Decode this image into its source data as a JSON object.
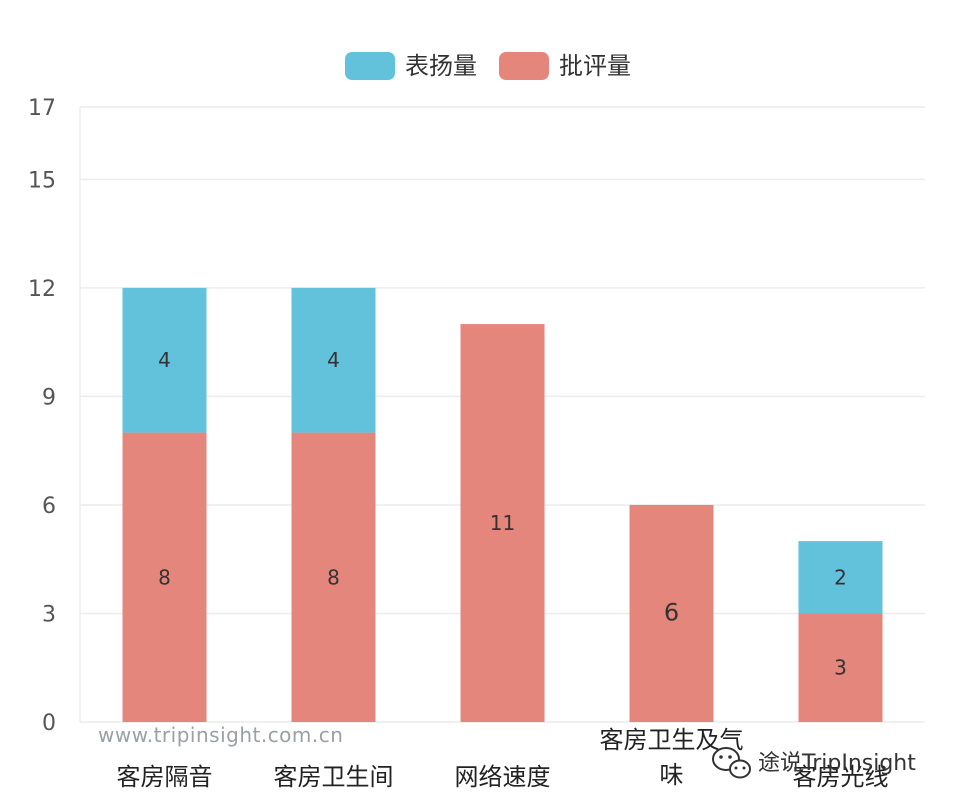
{
  "chart_data": {
    "type": "bar",
    "stacked": true,
    "categories": [
      "客房隔音",
      "客房卫生间",
      "网络速度",
      "客房卫生及气味",
      "客房光线"
    ],
    "category_lines": [
      [
        "客房隔音"
      ],
      [
        "客房卫生间"
      ],
      [
        "网络速度"
      ],
      [
        "客房卫生及气",
        "味"
      ],
      [
        "客房光线"
      ]
    ],
    "series": [
      {
        "name": "批评量",
        "color": "#e5867c",
        "values": [
          8,
          8,
          11,
          6,
          3
        ],
        "labels": [
          "8",
          "8",
          "11",
          "6",
          "3"
        ]
      },
      {
        "name": "表扬量",
        "color": "#62c2db",
        "values": [
          4,
          4,
          0,
          0,
          2
        ],
        "labels": [
          "4",
          "4",
          "",
          "",
          "2"
        ]
      }
    ],
    "legend": {
      "placement": "top-center",
      "order": [
        "表扬量",
        "批评量"
      ]
    },
    "ylim": [
      0,
      17
    ],
    "yticks": [
      0,
      3,
      6,
      9,
      12,
      15,
      17
    ],
    "grid": true,
    "xlabel": "",
    "ylabel": ""
  },
  "watermark": "www.tripinsight.com.cn",
  "wechat": {
    "icon": "wechat-icon",
    "text": "途说TripInsight"
  }
}
